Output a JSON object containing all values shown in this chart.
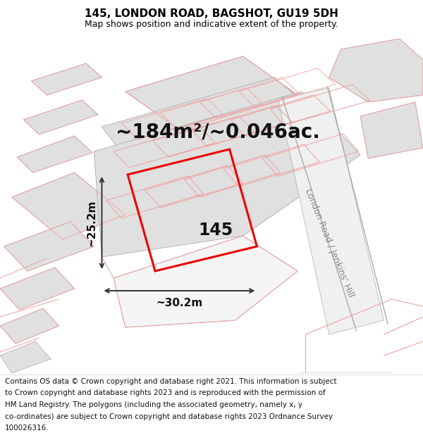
{
  "title": "145, LONDON ROAD, BAGSHOT, GU19 5DH",
  "subtitle": "Map shows position and indicative extent of the property.",
  "area_text": "~184m²/~0.046ac.",
  "width_text": "~30.2m",
  "height_text": "~25.2m",
  "property_number": "145",
  "road_label": "London Road / Jenkins' Hill",
  "footer_lines": [
    "Contains OS data © Crown copyright and database right 2021. This information is subject",
    "to Crown copyright and database rights 2023 and is reproduced with the permission of",
    "HM Land Registry. The polygons (including the associated geometry, namely x, y",
    "co-ordinates) are subject to Crown copyright and database rights 2023 Ordnance Survey",
    "100026316."
  ],
  "map_bg": "#ffffff",
  "red_color": "#ee0000",
  "pink_color": "#f0a0a0",
  "gray_fill": "#e0e0e0",
  "gray_edge": "#aaaaaa",
  "title_fontsize": 11,
  "subtitle_fontsize": 9,
  "area_fontsize": 20,
  "footer_fontsize": 7.5,
  "dim_fontsize": 11,
  "road_fontsize": 9,
  "num_fontsize": 17
}
